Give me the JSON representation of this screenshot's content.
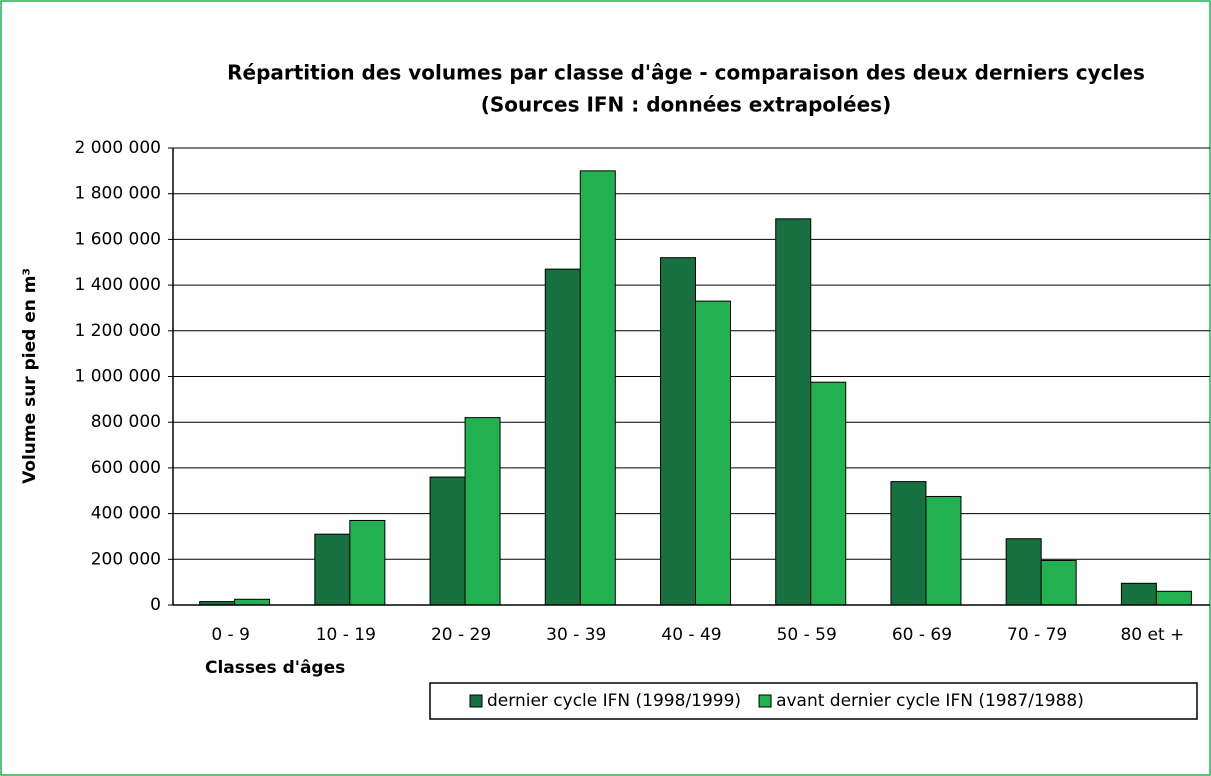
{
  "chart_data": {
    "type": "bar",
    "title": "Répartition des volumes par classe d'âge - comparaison des deux derniers cycles",
    "subtitle": "(Sources IFN : données extrapolées)",
    "y_label": "Volume sur pied en m³",
    "x_label": "Classes d'âges",
    "categories": [
      "0 - 9",
      "10 - 19",
      "20 - 29",
      "30 - 39",
      "40 - 49",
      "50 - 59",
      "60 - 69",
      "70 - 79",
      "80 et +"
    ],
    "series": [
      {
        "name": "dernier cycle IFN (1998/1999)",
        "color": "#17703f",
        "values": [
          15000,
          310000,
          560000,
          1470000,
          1520000,
          1690000,
          540000,
          290000,
          95000
        ]
      },
      {
        "name": "avant dernier cycle IFN (1987/1988)",
        "color": "#22b150",
        "values": [
          25000,
          370000,
          820000,
          1900000,
          1330000,
          975000,
          475000,
          195000,
          60000
        ]
      }
    ],
    "ylim": [
      0,
      2000000
    ],
    "yticks": [
      0,
      {
        "value": 200000,
        "label": "200 000"
      },
      {
        "value": 400000,
        "label": "400 000"
      },
      {
        "value": 600000,
        "label": "600 000"
      },
      {
        "value": 800000,
        "label": "800 000"
      },
      {
        "value": 1000000,
        "label": "1 000 000"
      },
      {
        "value": 1200000,
        "label": "1 200 000"
      },
      {
        "value": 1400000,
        "label": "1 400 000"
      },
      {
        "value": 1600000,
        "label": "1 600 000"
      },
      {
        "value": 1800000,
        "label": "1 800 000"
      },
      {
        "value": 2000000,
        "label": "2 000 000"
      }
    ],
    "grid": true
  }
}
